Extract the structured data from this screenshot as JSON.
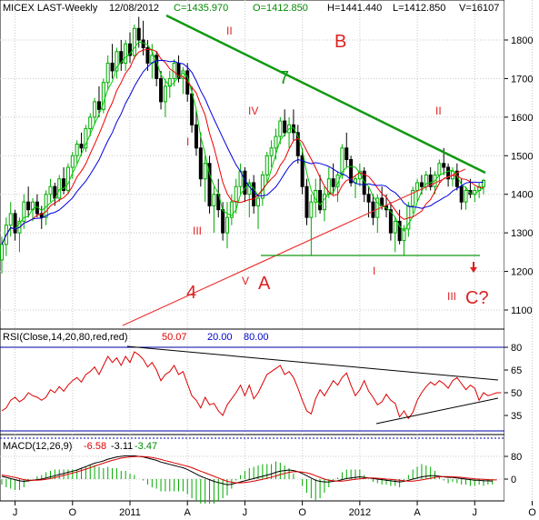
{
  "header": {
    "symbol": "MICEX LAST-Weekly",
    "date": "12/08/2012",
    "close": "C=1435.970",
    "open": "O=1412.850",
    "high": "H=1441.440",
    "low": "L=1412.850",
    "volume": "V=16107"
  },
  "rsi_header": {
    "label": "RSI(Close,14,20,80,red,red)",
    "value": "50.07",
    "low": "20.00",
    "high": "80.00"
  },
  "macd_header": {
    "label": "MACD(12,26,9)",
    "v1": "-6.58",
    "v2": "-3.11",
    "v3": "-3.47"
  },
  "colors": {
    "bull": "#00aa00",
    "bear": "#000000",
    "ma_fast": "#00cc00",
    "ma_mid": "#ee0000",
    "ma_slow": "#0000dd",
    "trend7": "#119911",
    "support4": "#ee3333",
    "wave_text": "#dd2222",
    "grid": "#c8c8c8"
  },
  "annotations": {
    "wave_B": "B",
    "wave_A": "A",
    "wave_C": "C?",
    "line4": "4",
    "line7": "7",
    "roman_II_1": "II",
    "roman_I_1": "I",
    "roman_III_1": "III",
    "roman_IV": "IV",
    "roman_V": "V",
    "roman_II_2": "II",
    "roman_I_2": "I",
    "roman_III_2": "III"
  },
  "chart_data": [
    {
      "type": "candlestick",
      "title": "MICEX LAST-Weekly",
      "ylim": [
        1080,
        1880
      ],
      "y_ticks": [
        1100,
        1200,
        1300,
        1400,
        1500,
        1600,
        1700,
        1800
      ],
      "x_ticks": [
        "J",
        "O",
        "2011",
        "A",
        "J",
        "O",
        "2012",
        "A",
        "J",
        "O"
      ],
      "x_tick_weeks": [
        3,
        16,
        29,
        42,
        55,
        68,
        81,
        94,
        107,
        120
      ],
      "ohlc_weeks": [
        [
          1230,
          1290,
          1195,
          1270
        ],
        [
          1270,
          1340,
          1240,
          1320
        ],
        [
          1320,
          1380,
          1290,
          1350
        ],
        [
          1350,
          1360,
          1280,
          1300
        ],
        [
          1300,
          1340,
          1250,
          1330
        ],
        [
          1330,
          1400,
          1310,
          1380
        ],
        [
          1380,
          1420,
          1340,
          1360
        ],
        [
          1360,
          1390,
          1330,
          1380
        ],
        [
          1380,
          1400,
          1340,
          1350
        ],
        [
          1350,
          1370,
          1310,
          1340
        ],
        [
          1340,
          1410,
          1320,
          1400
        ],
        [
          1400,
          1440,
          1380,
          1420
        ],
        [
          1420,
          1430,
          1370,
          1390
        ],
        [
          1390,
          1450,
          1380,
          1440
        ],
        [
          1440,
          1470,
          1400,
          1410
        ],
        [
          1410,
          1480,
          1400,
          1470
        ],
        [
          1470,
          1510,
          1440,
          1500
        ],
        [
          1500,
          1540,
          1480,
          1530
        ],
        [
          1530,
          1560,
          1500,
          1520
        ],
        [
          1520,
          1580,
          1510,
          1570
        ],
        [
          1570,
          1610,
          1550,
          1600
        ],
        [
          1600,
          1650,
          1580,
          1640
        ],
        [
          1640,
          1680,
          1600,
          1620
        ],
        [
          1620,
          1700,
          1610,
          1690
        ],
        [
          1690,
          1760,
          1670,
          1740
        ],
        [
          1740,
          1790,
          1700,
          1720
        ],
        [
          1720,
          1780,
          1700,
          1770
        ],
        [
          1770,
          1800,
          1720,
          1740
        ],
        [
          1740,
          1800,
          1720,
          1790
        ],
        [
          1790,
          1820,
          1740,
          1760
        ],
        [
          1760,
          1840,
          1750,
          1830
        ],
        [
          1830,
          1860,
          1780,
          1800
        ],
        [
          1800,
          1850,
          1760,
          1780
        ],
        [
          1780,
          1800,
          1720,
          1740
        ],
        [
          1740,
          1790,
          1700,
          1760
        ],
        [
          1760,
          1770,
          1680,
          1700
        ],
        [
          1700,
          1720,
          1620,
          1640
        ],
        [
          1640,
          1700,
          1600,
          1680
        ],
        [
          1680,
          1720,
          1650,
          1700
        ],
        [
          1700,
          1750,
          1680,
          1740
        ],
        [
          1740,
          1760,
          1690,
          1700
        ],
        [
          1700,
          1730,
          1660,
          1720
        ],
        [
          1720,
          1740,
          1640,
          1660
        ],
        [
          1660,
          1680,
          1560,
          1580
        ],
        [
          1580,
          1620,
          1500,
          1520
        ],
        [
          1520,
          1560,
          1420,
          1440
        ],
        [
          1440,
          1500,
          1380,
          1480
        ],
        [
          1480,
          1500,
          1350,
          1370
        ],
        [
          1370,
          1420,
          1300,
          1400
        ],
        [
          1400,
          1440,
          1340,
          1360
        ],
        [
          1360,
          1380,
          1280,
          1300
        ],
        [
          1300,
          1380,
          1260,
          1340
        ],
        [
          1340,
          1400,
          1320,
          1380
        ],
        [
          1380,
          1440,
          1350,
          1420
        ],
        [
          1420,
          1480,
          1400,
          1460
        ],
        [
          1460,
          1470,
          1380,
          1400
        ],
        [
          1400,
          1440,
          1340,
          1430
        ],
        [
          1430,
          1450,
          1350,
          1370
        ],
        [
          1370,
          1400,
          1310,
          1390
        ],
        [
          1390,
          1460,
          1370,
          1450
        ],
        [
          1450,
          1510,
          1430,
          1500
        ],
        [
          1500,
          1540,
          1470,
          1520
        ],
        [
          1520,
          1570,
          1490,
          1550
        ],
        [
          1550,
          1600,
          1530,
          1590
        ],
        [
          1590,
          1620,
          1550,
          1560
        ],
        [
          1560,
          1600,
          1520,
          1580
        ],
        [
          1580,
          1620,
          1540,
          1560
        ],
        [
          1560,
          1580,
          1480,
          1500
        ],
        [
          1500,
          1520,
          1400,
          1420
        ],
        [
          1420,
          1440,
          1320,
          1340
        ],
        [
          1340,
          1400,
          1240,
          1380
        ],
        [
          1380,
          1440,
          1340,
          1410
        ],
        [
          1410,
          1450,
          1350,
          1360
        ],
        [
          1360,
          1420,
          1330,
          1400
        ],
        [
          1400,
          1470,
          1390,
          1440
        ],
        [
          1440,
          1480,
          1400,
          1420
        ],
        [
          1420,
          1460,
          1380,
          1450
        ],
        [
          1450,
          1530,
          1440,
          1520
        ],
        [
          1520,
          1560,
          1470,
          1490
        ],
        [
          1490,
          1500,
          1420,
          1430
        ],
        [
          1430,
          1450,
          1390,
          1440
        ],
        [
          1440,
          1480,
          1420,
          1460
        ],
        [
          1460,
          1470,
          1380,
          1400
        ],
        [
          1400,
          1420,
          1340,
          1380
        ],
        [
          1380,
          1400,
          1320,
          1340
        ],
        [
          1340,
          1400,
          1300,
          1390
        ],
        [
          1390,
          1420,
          1360,
          1370
        ],
        [
          1370,
          1400,
          1340,
          1360
        ],
        [
          1360,
          1380,
          1280,
          1300
        ],
        [
          1300,
          1340,
          1250,
          1330
        ],
        [
          1330,
          1360,
          1270,
          1280
        ],
        [
          1280,
          1320,
          1240,
          1310
        ],
        [
          1310,
          1380,
          1290,
          1370
        ],
        [
          1370,
          1420,
          1350,
          1410
        ],
        [
          1410,
          1440,
          1380,
          1430
        ],
        [
          1430,
          1450,
          1400,
          1420
        ],
        [
          1420,
          1460,
          1410,
          1450
        ],
        [
          1450,
          1470,
          1410,
          1420
        ],
        [
          1420,
          1460,
          1400,
          1450
        ],
        [
          1450,
          1490,
          1430,
          1480
        ],
        [
          1480,
          1520,
          1450,
          1470
        ],
        [
          1470,
          1480,
          1420,
          1440
        ],
        [
          1440,
          1470,
          1420,
          1460
        ],
        [
          1460,
          1480,
          1410,
          1420
        ],
        [
          1420,
          1440,
          1360,
          1380
        ],
        [
          1380,
          1420,
          1360,
          1410
        ],
        [
          1410,
          1440,
          1390,
          1400
        ],
        [
          1400,
          1420,
          1380,
          1410
        ],
        [
          1410,
          1430,
          1390,
          1420
        ],
        [
          1420,
          1440,
          1400,
          1436
        ]
      ]
    },
    {
      "type": "line",
      "title": "RSI(Close,14,20,80,red,red)",
      "ylim": [
        20,
        90
      ],
      "y_ticks": [
        35,
        50,
        65,
        80
      ],
      "series": [
        {
          "name": "RSI",
          "values": [
            38,
            40,
            45,
            47,
            44,
            46,
            50,
            48,
            47,
            45,
            47,
            52,
            50,
            54,
            51,
            55,
            58,
            60,
            57,
            62,
            64,
            67,
            62,
            68,
            74,
            70,
            73,
            68,
            74,
            70,
            77,
            75,
            72,
            67,
            70,
            65,
            58,
            62,
            64,
            68,
            62,
            64,
            56,
            48,
            45,
            40,
            47,
            42,
            43,
            38,
            35,
            42,
            46,
            50,
            55,
            48,
            55,
            46,
            50,
            56,
            62,
            64,
            66,
            68,
            62,
            64,
            60,
            53,
            45,
            38,
            36,
            46,
            52,
            48,
            53,
            58,
            55,
            60,
            63,
            55,
            48,
            52,
            58,
            51,
            47,
            42,
            44,
            49,
            45,
            43,
            34,
            38,
            33,
            37,
            45,
            50,
            54,
            57,
            55,
            58,
            56,
            53,
            58,
            60,
            56,
            52,
            55,
            53,
            45,
            50,
            48,
            49,
            50,
            50
          ]
        }
      ]
    },
    {
      "type": "line",
      "title": "MACD(12,26,9)",
      "ylim": [
        -40,
        120
      ],
      "y_ticks": [
        0,
        80
      ],
      "series": [
        {
          "name": "MACD",
          "values": [
            10,
            6,
            2,
            -2,
            -6,
            -8,
            -6,
            -4,
            -2,
            0,
            4,
            8,
            12,
            16,
            20,
            24,
            28,
            32,
            38,
            44,
            50,
            56,
            60,
            64,
            70,
            74,
            78,
            80,
            82,
            82,
            82,
            80,
            78,
            74,
            70,
            66,
            60,
            56,
            52,
            48,
            44,
            40,
            34,
            26,
            18,
            10,
            4,
            -2,
            -8,
            -12,
            -16,
            -20,
            -18,
            -14,
            -10,
            -6,
            -2,
            2,
            6,
            10,
            14,
            18,
            24,
            28,
            30,
            32,
            30,
            26,
            20,
            12,
            4,
            -4,
            -8,
            -10,
            -10,
            -8,
            -6,
            -2,
            2,
            4,
            6,
            8,
            6,
            4,
            2,
            0,
            -2,
            -4,
            -6,
            -8,
            -10,
            -8,
            -4,
            0,
            4,
            8,
            10,
            12,
            12,
            10,
            8,
            6,
            6,
            4,
            2,
            0,
            -2,
            -4,
            -4,
            -6,
            -6,
            -7
          ]
        },
        {
          "name": "Signal",
          "values": [
            14,
            12,
            9,
            6,
            2,
            -2,
            -4,
            -4,
            -4,
            -3,
            -1,
            2,
            5,
            9,
            13,
            17,
            21,
            25,
            30,
            35,
            40,
            46,
            51,
            56,
            61,
            66,
            70,
            74,
            76,
            78,
            79,
            80,
            79,
            78,
            76,
            73,
            69,
            65,
            61,
            57,
            53,
            49,
            45,
            40,
            34,
            28,
            22,
            16,
            10,
            4,
            -2,
            -8,
            -11,
            -13,
            -13,
            -12,
            -10,
            -7,
            -4,
            -1,
            3,
            7,
            11,
            16,
            20,
            24,
            26,
            26,
            25,
            22,
            18,
            12,
            6,
            0,
            -4,
            -6,
            -7,
            -7,
            -5,
            -3,
            -1,
            1,
            3,
            4,
            4,
            3,
            2,
            0,
            -1,
            -3,
            -4,
            -6,
            -7,
            -7,
            -5,
            -3,
            0,
            3,
            6,
            8,
            9,
            9,
            8,
            7,
            6,
            4,
            3,
            1,
            0,
            -1,
            -2,
            -3,
            -3
          ]
        }
      ]
    }
  ]
}
